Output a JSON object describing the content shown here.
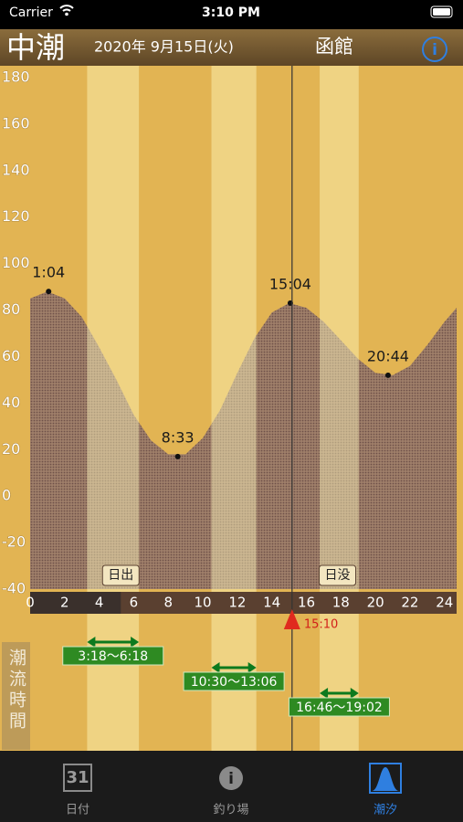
{
  "status_bar": {
    "carrier": "Carrier",
    "time": "3:10 PM"
  },
  "header": {
    "tide_name": "中潮",
    "date": "2020年 9月15日(火)",
    "place": "函館"
  },
  "chart_data": {
    "type": "area",
    "xlim": [
      0,
      24.7
    ],
    "xticks": [
      0,
      2,
      4,
      6,
      8,
      10,
      12,
      14,
      16,
      18,
      20,
      22,
      24
    ],
    "ylim": [
      -40,
      180
    ],
    "yticks": [
      -40,
      -20,
      0,
      20,
      40,
      60,
      80,
      100,
      120,
      140,
      160,
      180
    ],
    "curve": {
      "x": [
        0,
        1,
        2,
        3,
        4,
        5,
        6,
        7,
        8,
        9,
        10,
        11,
        12,
        13,
        14,
        15,
        16,
        17,
        18,
        19,
        20,
        21,
        22,
        23,
        24,
        24.7
      ],
      "values": [
        85,
        88,
        85,
        77,
        64,
        50,
        35,
        24,
        18,
        18,
        25,
        37,
        53,
        68,
        79,
        83,
        81,
        75,
        67,
        59,
        53,
        52,
        56,
        65,
        75,
        81
      ]
    },
    "extremes": [
      {
        "label": "1:04",
        "x": 1.07,
        "value": 88
      },
      {
        "label": "8:33",
        "x": 8.55,
        "value": 17
      },
      {
        "label": "15:04",
        "x": 15.07,
        "value": 83
      },
      {
        "label": "20:44",
        "x": 20.73,
        "value": 52
      }
    ],
    "sunrise": {
      "label": "日出",
      "x": 5.25
    },
    "sunset": {
      "label": "日没",
      "x": 17.8
    },
    "now": {
      "label": "15:10",
      "x": 15.17
    },
    "flow_title": "潮流時間",
    "flows": [
      {
        "label": "3:18〜6:18",
        "start": 3.3,
        "end": 6.3
      },
      {
        "label": "10:30〜13:06",
        "start": 10.5,
        "end": 13.1
      },
      {
        "label": "16:46〜19:02",
        "start": 16.77,
        "end": 19.03
      }
    ]
  },
  "tabs": [
    {
      "label": "日付",
      "icon": "31"
    },
    {
      "label": "釣り場"
    },
    {
      "label": "潮汐"
    }
  ]
}
